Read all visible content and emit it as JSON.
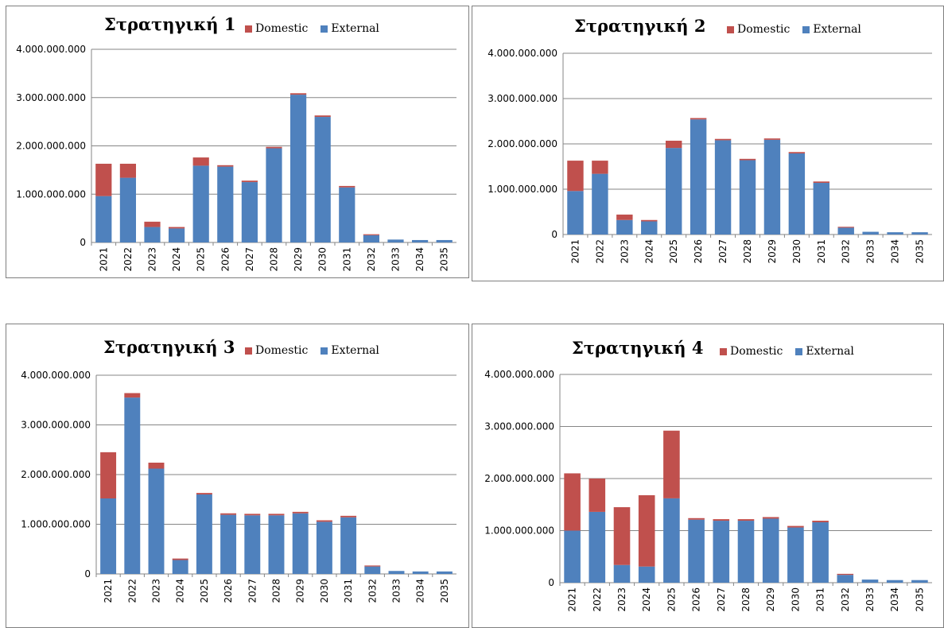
{
  "colors": {
    "domestic": "#C0504D",
    "external": "#4F81BD",
    "grid": "#868686"
  },
  "chart_data": [
    {
      "type": "bar",
      "stacked": true,
      "title": "Στρατηγική 1",
      "xlabel": "",
      "ylabel": "",
      "categories": [
        "2021",
        "2022",
        "2023",
        "2024",
        "2025",
        "2026",
        "2027",
        "2028",
        "2029",
        "2030",
        "2031",
        "2032",
        "2033",
        "2034",
        "2035"
      ],
      "ylim": [
        0,
        4000000000
      ],
      "yticks": [
        "0",
        "1.000.000.000",
        "2.000.000.000",
        "3.000.000.000",
        "4.000.000.000"
      ],
      "legend_position": "top",
      "grid": true,
      "series": [
        {
          "name": "External",
          "values": [
            960000000,
            1340000000,
            320000000,
            290000000,
            1590000000,
            1570000000,
            1250000000,
            1950000000,
            3060000000,
            2600000000,
            1140000000,
            150000000,
            60000000,
            50000000,
            50000000
          ]
        },
        {
          "name": "Domestic",
          "values": [
            670000000,
            290000000,
            110000000,
            30000000,
            170000000,
            30000000,
            30000000,
            30000000,
            30000000,
            30000000,
            30000000,
            20000000,
            0,
            0,
            0
          ]
        }
      ]
    },
    {
      "type": "bar",
      "stacked": true,
      "title": "Στρατηγική 2",
      "xlabel": "",
      "ylabel": "",
      "categories": [
        "2021",
        "2022",
        "2023",
        "2024",
        "2025",
        "2026",
        "2027",
        "2028",
        "2029",
        "2030",
        "2031",
        "2032",
        "2033",
        "2034",
        "2035"
      ],
      "ylim": [
        0,
        4000000000
      ],
      "yticks": [
        "0",
        "1.000.000.000",
        "2.000.000.000",
        "3.000.000.000",
        "4.000.000.000"
      ],
      "legend_position": "top",
      "grid": true,
      "series": [
        {
          "name": "External",
          "values": [
            960000000,
            1340000000,
            320000000,
            290000000,
            1910000000,
            2540000000,
            2080000000,
            1640000000,
            2090000000,
            1790000000,
            1140000000,
            150000000,
            60000000,
            50000000,
            50000000
          ]
        },
        {
          "name": "Domestic",
          "values": [
            670000000,
            290000000,
            120000000,
            30000000,
            160000000,
            30000000,
            30000000,
            30000000,
            30000000,
            30000000,
            30000000,
            20000000,
            0,
            0,
            0
          ]
        }
      ]
    },
    {
      "type": "bar",
      "stacked": true,
      "title": "Στρατηγική 3",
      "xlabel": "",
      "ylabel": "",
      "categories": [
        "2021",
        "2022",
        "2023",
        "2024",
        "2025",
        "2026",
        "2027",
        "2028",
        "2029",
        "2030",
        "2031",
        "2032",
        "2033",
        "2034",
        "2035"
      ],
      "ylim": [
        0,
        4000000000
      ],
      "yticks": [
        "0",
        "1.000.000.000",
        "2.000.000.000",
        "3.000.000.000",
        "4.000.000.000"
      ],
      "legend_position": "top",
      "grid": true,
      "series": [
        {
          "name": "External",
          "values": [
            1520000000,
            3550000000,
            2120000000,
            280000000,
            1600000000,
            1190000000,
            1180000000,
            1180000000,
            1220000000,
            1050000000,
            1140000000,
            150000000,
            60000000,
            50000000,
            50000000
          ]
        },
        {
          "name": "Domestic",
          "values": [
            930000000,
            90000000,
            120000000,
            30000000,
            30000000,
            30000000,
            30000000,
            30000000,
            30000000,
            30000000,
            30000000,
            20000000,
            0,
            0,
            0
          ]
        }
      ]
    },
    {
      "type": "bar",
      "stacked": true,
      "title": "Στρατηγική 4",
      "xlabel": "",
      "ylabel": "",
      "categories": [
        "2021",
        "2022",
        "2023",
        "2024",
        "2025",
        "2026",
        "2027",
        "2028",
        "2029",
        "2030",
        "2031",
        "2032",
        "2033",
        "2034",
        "2035"
      ],
      "ylim": [
        0,
        4000000000
      ],
      "yticks": [
        "0",
        "1.000.000.000",
        "2.000.000.000",
        "3.000.000.000",
        "4.000.000.000"
      ],
      "legend_position": "top",
      "grid": true,
      "series": [
        {
          "name": "External",
          "values": [
            1000000000,
            1360000000,
            340000000,
            310000000,
            1620000000,
            1210000000,
            1190000000,
            1190000000,
            1230000000,
            1060000000,
            1160000000,
            150000000,
            60000000,
            50000000,
            50000000
          ]
        },
        {
          "name": "Domestic",
          "values": [
            1100000000,
            640000000,
            1110000000,
            1370000000,
            1300000000,
            30000000,
            30000000,
            30000000,
            30000000,
            30000000,
            30000000,
            20000000,
            0,
            0,
            0
          ]
        }
      ]
    }
  ]
}
